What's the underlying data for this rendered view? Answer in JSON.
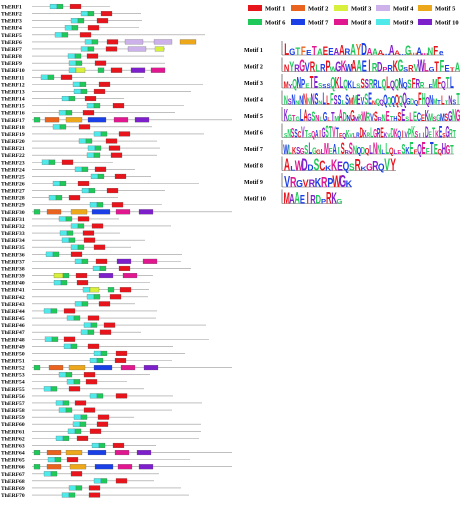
{
  "motif_colors": {
    "1": "#e8141c",
    "2": "#e9621e",
    "3": "#d8f03c",
    "4": "#cdb1ea",
    "5": "#eda71b",
    "6": "#1ec95a",
    "7": "#1a3fe6",
    "8": "#e0178f",
    "9": "#4fe9ea",
    "10": "#7e1fcc"
  },
  "legend": [
    {
      "id": "1",
      "label": "Motif 1"
    },
    {
      "id": "2",
      "label": "Motif 2"
    },
    {
      "id": "3",
      "label": "Motif 3"
    },
    {
      "id": "4",
      "label": "Motif 4"
    },
    {
      "id": "5",
      "label": "Motif 5"
    },
    {
      "id": "6",
      "label": "Motif 6"
    },
    {
      "id": "7",
      "label": "Motif 7"
    },
    {
      "id": "8",
      "label": "Motif 8"
    },
    {
      "id": "9",
      "label": "Motif 9"
    },
    {
      "id": "10",
      "label": "Motif 10"
    }
  ],
  "logos": [
    {
      "label": "Motif 1",
      "seq": "LGTFETAEEAARAYDAAA…AA…G…A…NFe",
      "colors": [
        "#e8141c",
        "#1a3fe6",
        "#1ec95a",
        "#e9621e",
        "#1a3fe6",
        "#e0178f",
        "#1ec95a",
        "#e8141c",
        "#1a3fe6",
        "#7e1fcc"
      ]
    },
    {
      "label": "Motif 2",
      "seq": "NYRGVRLRPWGKWAAEIRDPRKGSRVWLGTFETA",
      "colors": [
        "#1a3fe6",
        "#e8141c",
        "#1ec95a",
        "#7e1fcc",
        "#e0178f",
        "#1a3fe6",
        "#e8141c",
        "#1ec95a"
      ]
    },
    {
      "label": "Motif 3",
      "seq": "MYQNPETESSSQKLQKLSSSRRLQLQQNQSFRR EMFQTL",
      "colors": [
        "#1a3fe6",
        "#1ec95a",
        "#e8141c",
        "#7e1fcc",
        "#1ec95a",
        "#1a3fe6"
      ]
    },
    {
      "label": "Motif 4",
      "seq": "NSNNNNNNSNLLFSSLSMMEVSENQQQQQQQQGDQFHQNMTLTNST",
      "colors": [
        "#1ec95a",
        "#1a3fe6",
        "#e8141c",
        "#1ec95a",
        "#7e1fcc",
        "#1a3fe6"
      ]
    },
    {
      "label": "Motif 5",
      "seq": "KGTGLAGSNLGLTMADNGMKWRVSRNETHSESLECEKMSGMSGNG",
      "colors": [
        "#e0178f",
        "#1ec95a",
        "#1a3fe6",
        "#e8141c",
        "#7e1fcc",
        "#1ec95a"
      ]
    },
    {
      "label": "Motif 6",
      "seq": "SNSSCVTSQAIGSTVTEQKVLRDKRLGREKVDKQIVPKSIIDETKESGRT",
      "colors": [
        "#1ec95a",
        "#e0178f",
        "#1a3fe6",
        "#e8141c",
        "#7e1fcc",
        "#1ec95a"
      ]
    },
    {
      "label": "Motif 7",
      "seq": "WLKSGSLGGLMEAISRSNQDQLNNLLQLESKEFQEFTEQHGT",
      "colors": [
        "#1a3fe6",
        "#1ec95a",
        "#e8141c",
        "#7e1fcc",
        "#e0178f",
        "#1ec95a"
      ]
    },
    {
      "label": "Motif 8",
      "seq": "ALWDDSCKKEQSRKGRQVY",
      "colors": [
        "#1ec95a",
        "#e8141c",
        "#1a3fe6",
        "#e0178f",
        "#7e1fcc",
        "#1a3fe6"
      ]
    },
    {
      "label": "Motif 9",
      "seq": "VRGVRKRPWGK",
      "colors": [
        "#1a3fe6",
        "#e8141c",
        "#7e1fcc",
        "#1a3fe6",
        "#e0178f"
      ]
    },
    {
      "label": "Motif 10",
      "seq": "MAAEIRDPRKG",
      "colors": [
        "#1a3fe6",
        "#e8141c",
        "#7e1fcc",
        "#1ec95a"
      ]
    }
  ],
  "genes": [
    {
      "name": "ThERF1",
      "motifs": [
        "9",
        "6",
        "1"
      ]
    },
    {
      "name": "ThERF2",
      "motifs": [
        "9",
        "6",
        "1"
      ]
    },
    {
      "name": "ThERF3",
      "motifs": [
        "9",
        "6",
        "1"
      ]
    },
    {
      "name": "ThERF4",
      "motifs": [
        "9",
        "6",
        "1"
      ]
    },
    {
      "name": "ThERF5",
      "motifs": [
        "9",
        "6",
        "1"
      ]
    },
    {
      "name": "ThERF6",
      "motifs": [
        "9",
        "6",
        "1",
        "4",
        "4",
        "5"
      ]
    },
    {
      "name": "ThERF7",
      "motifs": [
        "9",
        "6",
        "1",
        "4",
        "3"
      ]
    },
    {
      "name": "ThERF8",
      "motifs": [
        "9",
        "6",
        "1"
      ]
    },
    {
      "name": "ThERF9",
      "motifs": [
        "9",
        "6",
        "1"
      ]
    },
    {
      "name": "ThERF10",
      "motifs": [
        "9",
        "3",
        "6",
        "1",
        "10",
        "8"
      ]
    },
    {
      "name": "ThERF11",
      "motifs": [
        "9",
        "6",
        "1"
      ]
    },
    {
      "name": "ThERF12",
      "motifs": [
        "9",
        "6",
        "1"
      ]
    },
    {
      "name": "ThERF13",
      "motifs": [
        "9",
        "6",
        "1"
      ]
    },
    {
      "name": "ThERF14",
      "motifs": [
        "9",
        "6",
        "1"
      ]
    },
    {
      "name": "ThERF15",
      "motifs": [
        "9",
        "6",
        "1"
      ]
    },
    {
      "name": "ThERF16",
      "motifs": [
        "9",
        "6",
        "1"
      ]
    },
    {
      "name": "ThERF17",
      "motifs": [
        "6",
        "2",
        "5",
        "7",
        "8",
        "10"
      ]
    },
    {
      "name": "ThERF18",
      "motifs": [
        "9",
        "6",
        "1"
      ]
    },
    {
      "name": "ThERF19",
      "motifs": [
        "9",
        "6",
        "1"
      ]
    },
    {
      "name": "ThERF20",
      "motifs": [
        "9",
        "6",
        "1"
      ]
    },
    {
      "name": "ThERF21",
      "motifs": [
        "9",
        "6",
        "1"
      ]
    },
    {
      "name": "ThERF22",
      "motifs": [
        "9",
        "6",
        "1"
      ]
    },
    {
      "name": "ThERF23",
      "motifs": [
        "9",
        "6",
        "1"
      ]
    },
    {
      "name": "ThERF24",
      "motifs": [
        "9",
        "6",
        "1"
      ]
    },
    {
      "name": "ThERF25",
      "motifs": [
        "9",
        "6",
        "1"
      ]
    },
    {
      "name": "ThERF26",
      "motifs": [
        "9",
        "6",
        "1"
      ]
    },
    {
      "name": "ThERF27",
      "motifs": [
        "9",
        "6",
        "1"
      ]
    },
    {
      "name": "ThERF28",
      "motifs": [
        "9",
        "6",
        "1"
      ]
    },
    {
      "name": "ThERF29",
      "motifs": [
        "9",
        "6",
        "1"
      ]
    },
    {
      "name": "ThERF30",
      "motifs": [
        "6",
        "2",
        "5",
        "7",
        "8",
        "10"
      ]
    },
    {
      "name": "ThERF31",
      "motifs": [
        "9",
        "6",
        "1"
      ]
    },
    {
      "name": "ThERF32",
      "motifs": [
        "9",
        "6",
        "1"
      ]
    },
    {
      "name": "ThERF33",
      "motifs": [
        "9",
        "6",
        "1"
      ]
    },
    {
      "name": "ThERF34",
      "motifs": [
        "9",
        "6",
        "1"
      ]
    },
    {
      "name": "ThERF35",
      "motifs": [
        "9",
        "6",
        "1"
      ]
    },
    {
      "name": "ThERF36",
      "motifs": [
        "9",
        "6",
        "1"
      ]
    },
    {
      "name": "ThERF37",
      "motifs": [
        "9",
        "6",
        "1",
        "10",
        "8"
      ]
    },
    {
      "name": "ThERF38",
      "motifs": [
        "9",
        "6",
        "1"
      ]
    },
    {
      "name": "ThERF39",
      "motifs": [
        "3",
        "6",
        "1",
        "10",
        "8"
      ]
    },
    {
      "name": "ThERF40",
      "motifs": [
        "9",
        "6",
        "1"
      ]
    },
    {
      "name": "ThERF41",
      "motifs": [
        "9",
        "3",
        "6",
        "1"
      ]
    },
    {
      "name": "ThERF42",
      "motifs": [
        "9",
        "6",
        "1"
      ]
    },
    {
      "name": "ThERF43",
      "motifs": [
        "9",
        "6",
        "1"
      ]
    },
    {
      "name": "ThERF44",
      "motifs": [
        "9",
        "6",
        "1"
      ]
    },
    {
      "name": "ThERF45",
      "motifs": [
        "9",
        "6",
        "1"
      ]
    },
    {
      "name": "ThERF46",
      "motifs": [
        "9",
        "6",
        "1"
      ]
    },
    {
      "name": "ThERF47",
      "motifs": [
        "9",
        "6",
        "1"
      ]
    },
    {
      "name": "ThERF48",
      "motifs": [
        "9",
        "6",
        "1"
      ]
    },
    {
      "name": "ThERF49",
      "motifs": [
        "9",
        "6",
        "1"
      ]
    },
    {
      "name": "ThERF50",
      "motifs": [
        "9",
        "6",
        "1"
      ]
    },
    {
      "name": "ThERF51",
      "motifs": [
        "9",
        "6",
        "1"
      ]
    },
    {
      "name": "ThERF52",
      "motifs": [
        "6",
        "2",
        "5",
        "7",
        "8",
        "10"
      ]
    },
    {
      "name": "ThERF53",
      "motifs": [
        "9",
        "6",
        "1"
      ]
    },
    {
      "name": "ThERF54",
      "motifs": [
        "9",
        "6",
        "1"
      ]
    },
    {
      "name": "ThERF55",
      "motifs": [
        "9",
        "6",
        "1"
      ]
    },
    {
      "name": "ThERF56",
      "motifs": [
        "9",
        "6",
        "1"
      ]
    },
    {
      "name": "ThERF57",
      "motifs": [
        "9",
        "6",
        "1"
      ]
    },
    {
      "name": "ThERF58",
      "motifs": [
        "9",
        "6",
        "1"
      ]
    },
    {
      "name": "ThERF59",
      "motifs": [
        "9",
        "6",
        "1"
      ]
    },
    {
      "name": "ThERF60",
      "motifs": [
        "9",
        "6",
        "1"
      ]
    },
    {
      "name": "ThERF61",
      "motifs": [
        "9",
        "6",
        "1"
      ]
    },
    {
      "name": "ThERF62",
      "motifs": [
        "9",
        "6",
        "1"
      ]
    },
    {
      "name": "ThERF63",
      "motifs": [
        "9",
        "6",
        "1"
      ]
    },
    {
      "name": "ThERF64",
      "motifs": [
        "6",
        "2",
        "5",
        "7",
        "8",
        "10"
      ]
    },
    {
      "name": "ThERF65",
      "motifs": [
        "9",
        "6",
        "1"
      ]
    },
    {
      "name": "ThERF66",
      "motifs": [
        "6",
        "2",
        "5",
        "7",
        "8",
        "10"
      ]
    },
    {
      "name": "ThERF67",
      "motifs": [
        "9",
        "6",
        "1"
      ]
    },
    {
      "name": "ThERF68",
      "motifs": [
        "9",
        "6",
        "1"
      ]
    },
    {
      "name": "ThERF69",
      "motifs": [
        "9",
        "6",
        "1"
      ]
    },
    {
      "name": "ThERF70",
      "motifs": [
        "9",
        "6",
        "1"
      ]
    }
  ]
}
